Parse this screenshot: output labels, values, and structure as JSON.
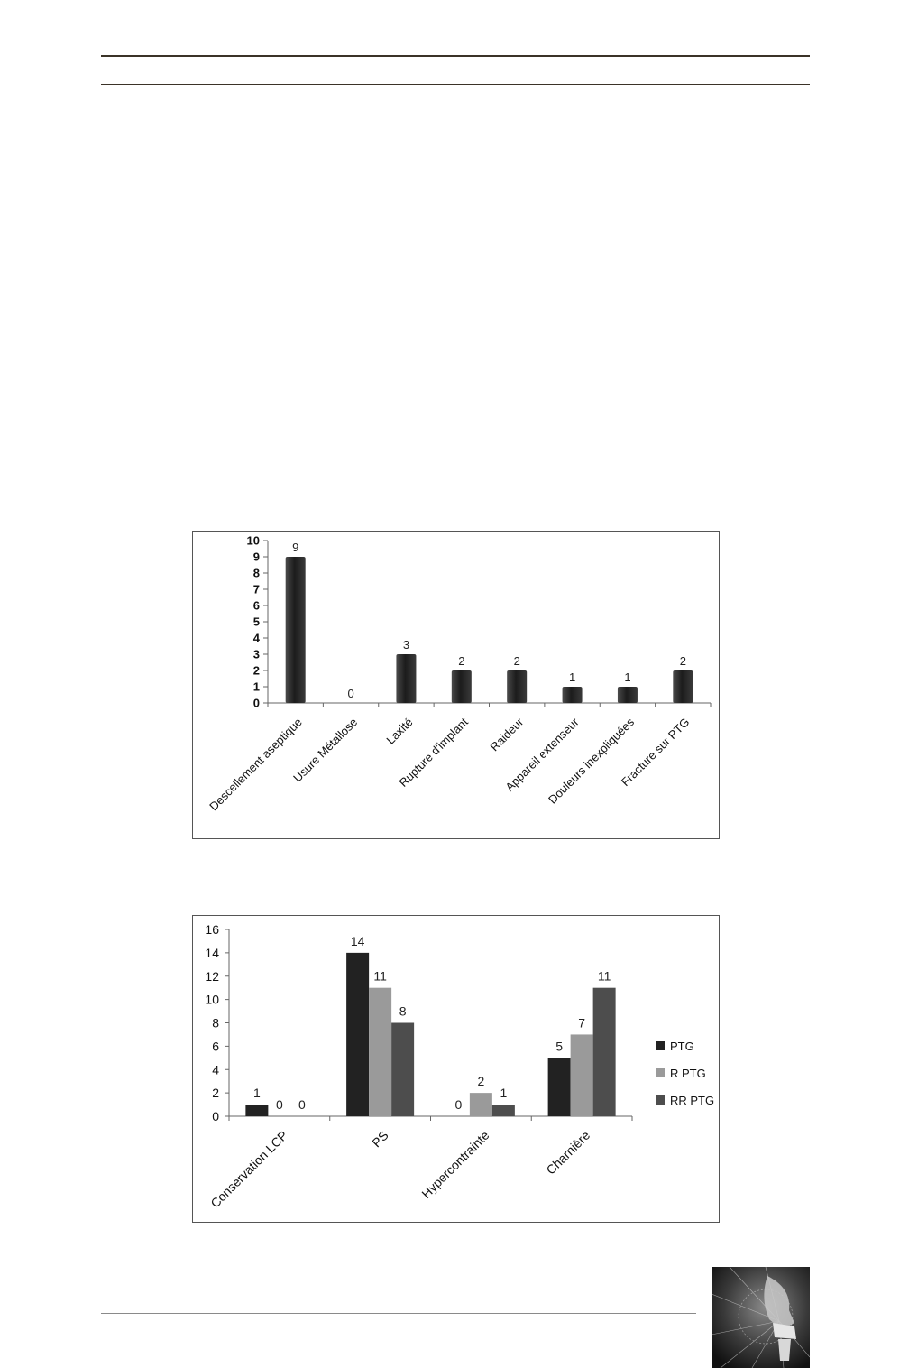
{
  "chart_data": [
    {
      "type": "bar",
      "categories": [
        "Descellement aseptique",
        "Usure Métallose",
        "Laxité",
        "Rupture d'implant",
        "Raideur",
        "Appareil extenseur",
        "Douleurs inexpliquées",
        "Fracture sur PTG"
      ],
      "values": [
        9,
        0,
        3,
        2,
        2,
        1,
        1,
        2
      ],
      "ylim": [
        0,
        10
      ],
      "yticks": [
        0,
        1,
        2,
        3,
        4,
        5,
        6,
        7,
        8,
        9,
        10
      ],
      "grid": false,
      "legend": "none",
      "colors": {
        "bar": "#1c1c1c"
      }
    },
    {
      "type": "bar",
      "categories": [
        "Conservation LCP",
        "PS",
        "Hypercontrainte",
        "Charnière"
      ],
      "series": [
        {
          "name": "PTG",
          "values": [
            1,
            14,
            0,
            5
          ],
          "color": "#222222"
        },
        {
          "name": "R PTG",
          "values": [
            0,
            11,
            2,
            7
          ],
          "color": "#9a9a9a"
        },
        {
          "name": "RR PTG",
          "values": [
            0,
            8,
            1,
            11
          ],
          "color": "#4d4d4d"
        }
      ],
      "ylim": [
        0,
        16
      ],
      "yticks": [
        0,
        2,
        4,
        6,
        8,
        10,
        12,
        14,
        16
      ],
      "grid": false,
      "legend": "right"
    }
  ]
}
